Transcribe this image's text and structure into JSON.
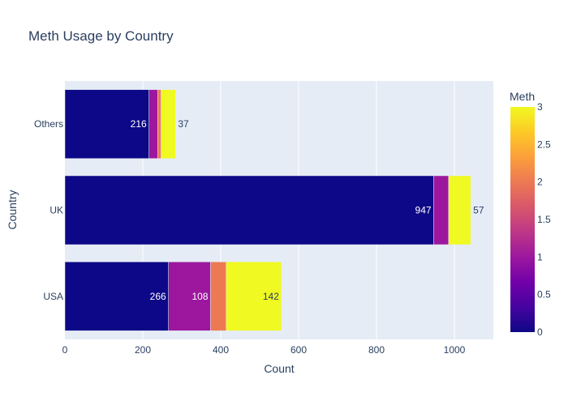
{
  "chart_data": {
    "type": "bar",
    "orientation": "horizontal",
    "barmode": "stack",
    "title": "Meth Usage by Country",
    "xlabel": "Count",
    "ylabel": "Country",
    "xlim": [
      0,
      1100
    ],
    "x_ticks": [
      0,
      200,
      400,
      600,
      800,
      1000
    ],
    "grid": true,
    "categories": [
      "USA",
      "UK",
      "Others"
    ],
    "series": [
      {
        "meth": 0,
        "color": "#0d0887",
        "values": [
          266,
          947,
          216
        ],
        "labels": [
          "266",
          "947",
          "216"
        ]
      },
      {
        "meth": 1,
        "color": "#9c179e",
        "values": [
          108,
          38,
          22
        ],
        "labels": [
          "108",
          "",
          ""
        ]
      },
      {
        "meth": 2,
        "color": "#ed7953",
        "values": [
          40,
          0,
          9
        ],
        "labels": [
          "",
          "",
          ""
        ]
      },
      {
        "meth": 3,
        "color": "#f0f921",
        "values": [
          142,
          57,
          37
        ],
        "labels": [
          "142",
          "57",
          "37"
        ]
      }
    ],
    "colorbar": {
      "title": "Meth",
      "range": [
        0,
        3
      ],
      "ticks": [
        "0",
        "0.5",
        "1",
        "1.5",
        "2",
        "2.5",
        "3"
      ],
      "colorscale": [
        "#0d0887",
        "#46039f",
        "#7201a8",
        "#9c179e",
        "#bd3786",
        "#d8576b",
        "#ed7953",
        "#fb9f3a",
        "#fdca26",
        "#f0f921"
      ]
    },
    "colors": {
      "plot_bg": "#e5ecf6",
      "grid": "#ffffff",
      "text": "#2a3f5f"
    }
  }
}
